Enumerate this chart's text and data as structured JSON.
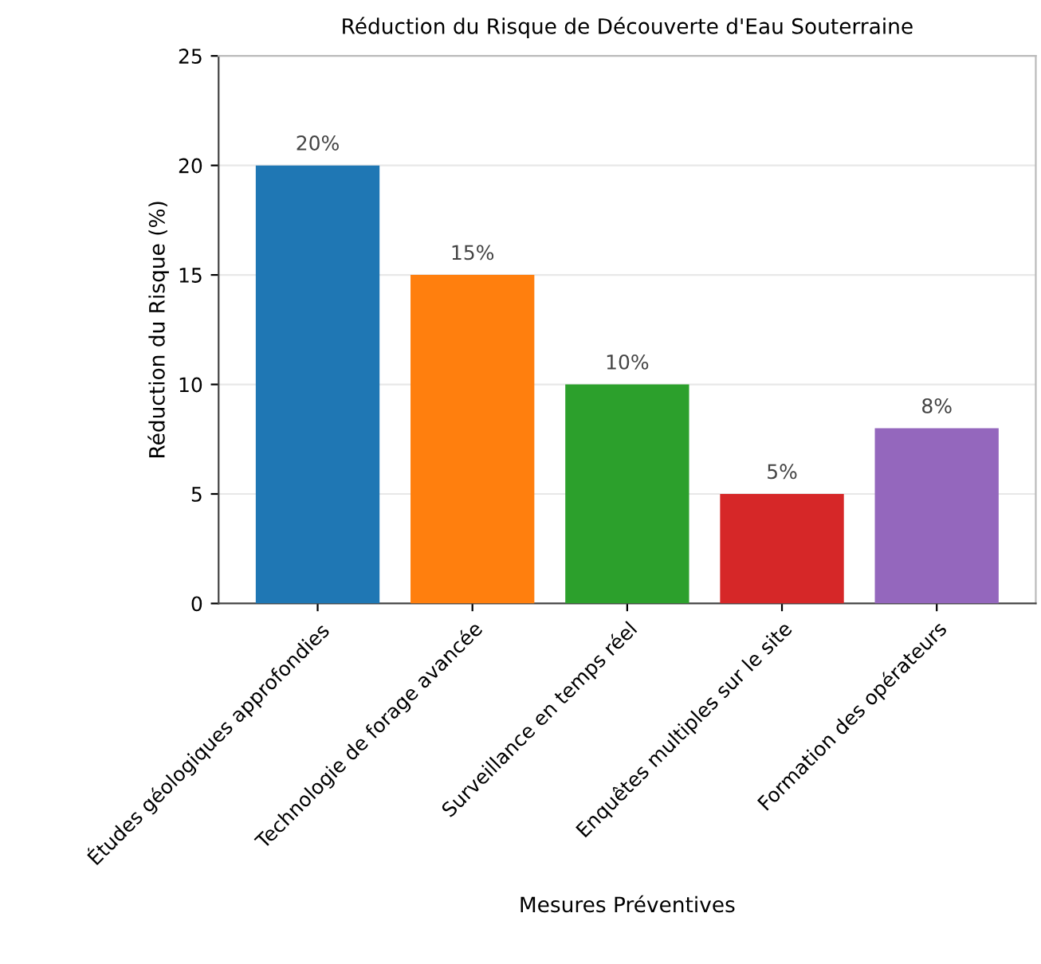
{
  "chart_data": {
    "type": "bar",
    "title": "Réduction du Risque de Découverte d'Eau Souterraine",
    "xlabel": "Mesures Préventives",
    "ylabel": "Réduction du Risque (%)",
    "categories": [
      "Études géologiques approfondies",
      "Technologie de forage avancée",
      "Surveillance en temps réel",
      "Enquêtes multiples sur le site",
      "Formation des opérateurs"
    ],
    "values": [
      20,
      15,
      10,
      5,
      8
    ],
    "colors": [
      "#1f77b4",
      "#ff7f0e",
      "#2ca02c",
      "#d62728",
      "#9467bd"
    ],
    "value_labels": [
      "20%",
      "15%",
      "10%",
      "5%",
      "8%"
    ],
    "ylim": [
      0,
      25
    ],
    "yticks": [
      0,
      5,
      10,
      15,
      20,
      25
    ],
    "grid": "y"
  }
}
